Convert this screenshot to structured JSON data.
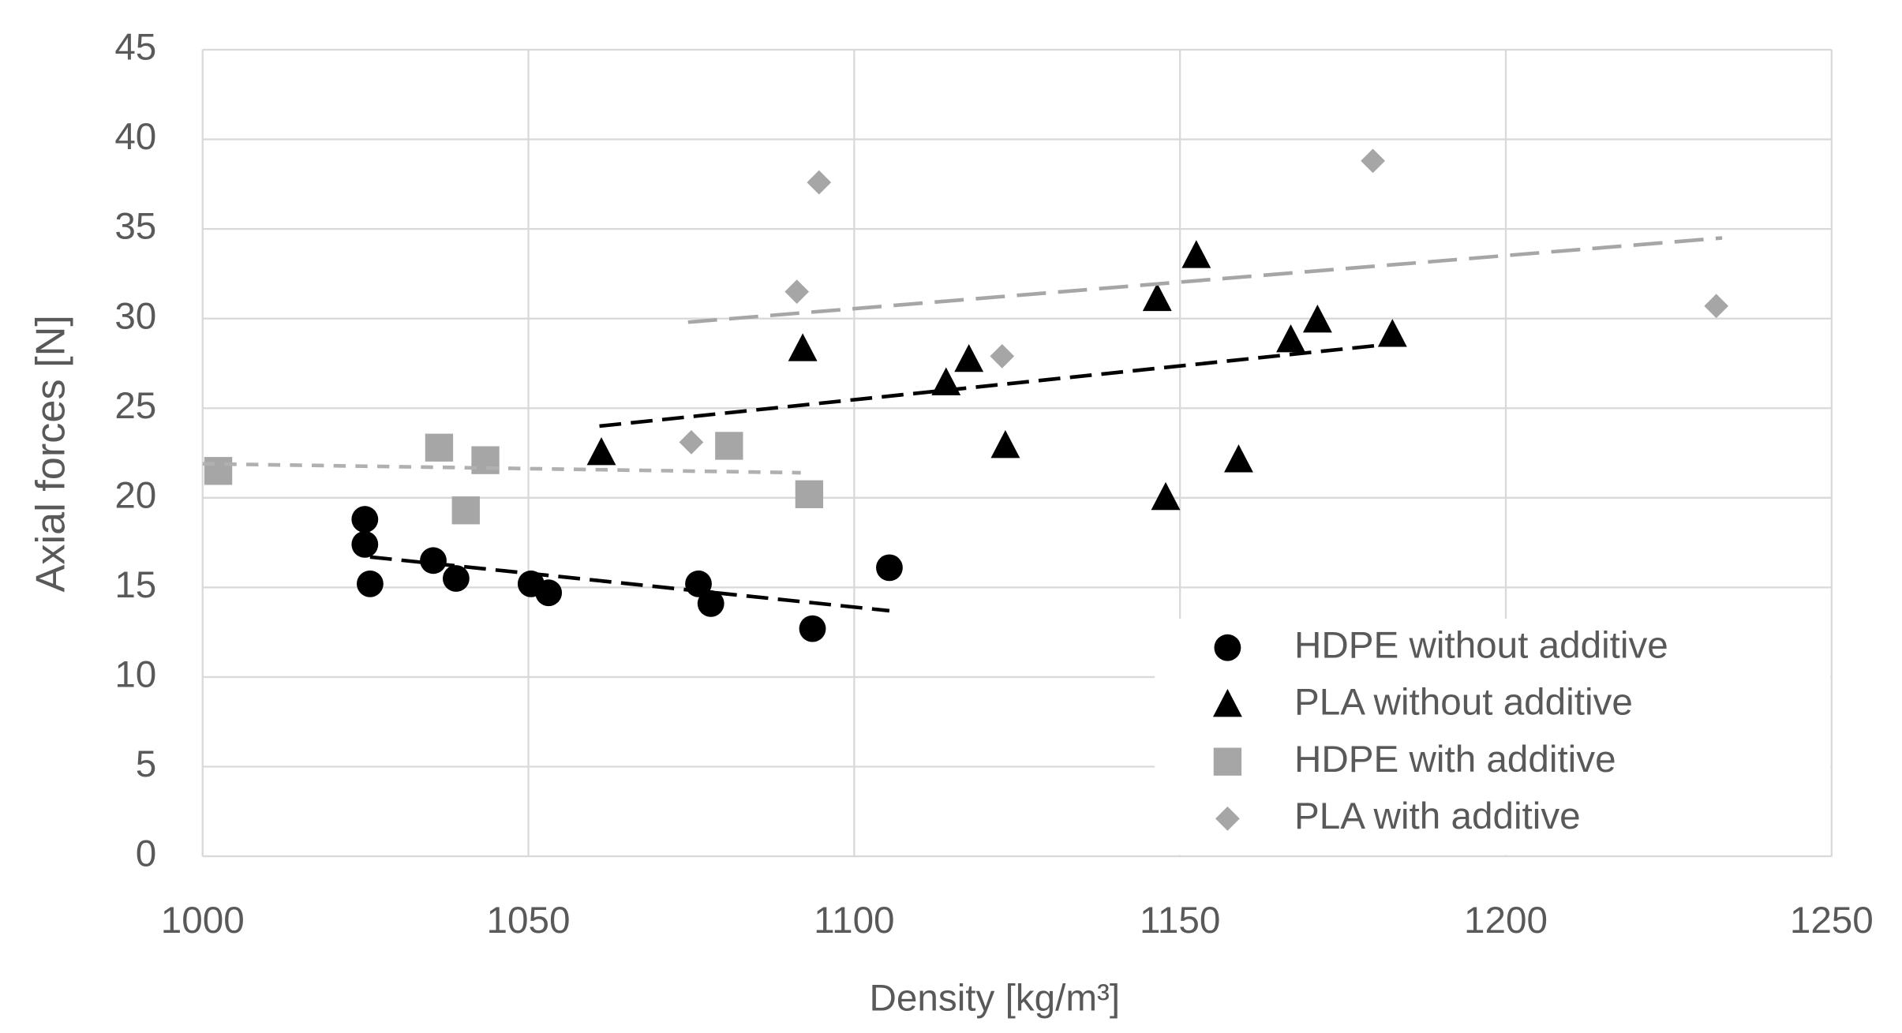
{
  "chart_data": {
    "type": "scatter",
    "x_label": "Density [kg/m³]",
    "y_label": "Axial forces [N]",
    "xlim": [
      1000,
      1250
    ],
    "xticks": [
      1000,
      1050,
      1100,
      1150,
      1200,
      1250
    ],
    "ylim": [
      0,
      45
    ],
    "yticks": [
      0,
      5,
      10,
      15,
      20,
      25,
      30,
      35,
      40,
      45
    ],
    "grid": true,
    "legend": "lower right",
    "series": [
      {
        "name": "HDPE without additive",
        "marker": "circle",
        "color": "#000000",
        "x": [
          1024.9,
          1024.9,
          1025.7,
          1035.4,
          1038.9,
          1050.4,
          1053.1,
          1076.1,
          1078.0,
          1093.6,
          1105.4
        ],
        "y": [
          18.8,
          17.4,
          15.2,
          16.5,
          15.5,
          15.2,
          14.7,
          15.2,
          14.1,
          12.7,
          16.1
        ],
        "trendline": {
          "color": "#000000",
          "x": [
            1025.7,
            1105.4
          ],
          "y": [
            16.7,
            13.7
          ]
        }
      },
      {
        "name": "PLA without additive",
        "marker": "triangle",
        "color": "#000000",
        "x": [
          1061.2,
          1092.1,
          1114.1,
          1117.6,
          1123.2,
          1146.5,
          1147.8,
          1152.5,
          1159.0,
          1167.0,
          1171.1,
          1182.6
        ],
        "y": [
          22.5,
          28.3,
          26.4,
          27.7,
          22.9,
          31.1,
          20.0,
          33.5,
          22.1,
          28.8,
          29.9,
          29.1
        ],
        "trendline": {
          "color": "#000000",
          "x": [
            1060.9,
            1183.0
          ],
          "y": [
            24.0,
            28.6
          ]
        }
      },
      {
        "name": "HDPE with additive",
        "marker": "square",
        "color": "#a6a6a6",
        "x": [
          1002.4,
          1036.3,
          1043.4,
          1040.4,
          1080.8,
          1093.1
        ],
        "y": [
          21.5,
          22.8,
          22.1,
          19.3,
          22.9,
          20.2
        ],
        "trendline": {
          "color": "#b0b0b0",
          "x": [
            1000.0,
            1091.8
          ],
          "y": [
            21.9,
            21.4
          ]
        }
      },
      {
        "name": "PLA with additive",
        "marker": "diamond",
        "color": "#a6a6a6",
        "x": [
          1075.0,
          1091.2,
          1094.6,
          1122.7,
          1179.6,
          1232.3
        ],
        "y": [
          23.1,
          31.5,
          37.6,
          27.9,
          38.8,
          30.7
        ],
        "trendline": {
          "color": "#a6a6a6",
          "x": [
            1074.5,
            1233.2
          ],
          "y": [
            29.8,
            34.5
          ]
        }
      }
    ]
  }
}
